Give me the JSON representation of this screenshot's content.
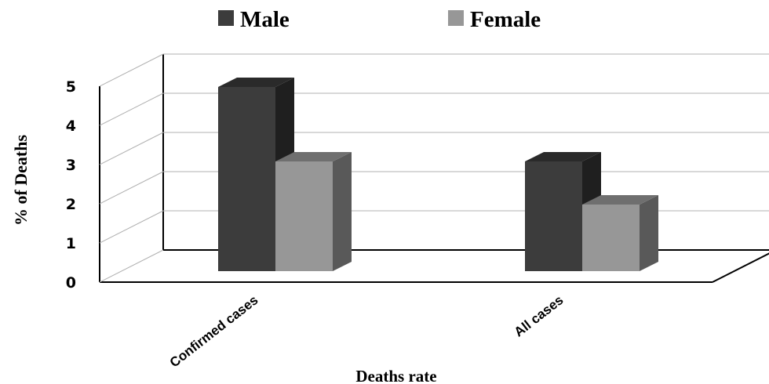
{
  "chart_data": {
    "type": "bar",
    "title": "",
    "xlabel": "Deaths rate",
    "ylabel": "% of Deaths",
    "categories": [
      "Confirmed cases",
      "All cases"
    ],
    "series": [
      {
        "name": "Male",
        "values": [
          4.7,
          2.8
        ],
        "color": "#3c3c3c"
      },
      {
        "name": "Female",
        "values": [
          2.8,
          1.7
        ],
        "color": "#979797"
      }
    ],
    "ylim": [
      0,
      5
    ],
    "yticks": [
      "0",
      "1",
      "2",
      "3",
      "4",
      "5"
    ],
    "grid": true,
    "legend_position": "top"
  }
}
